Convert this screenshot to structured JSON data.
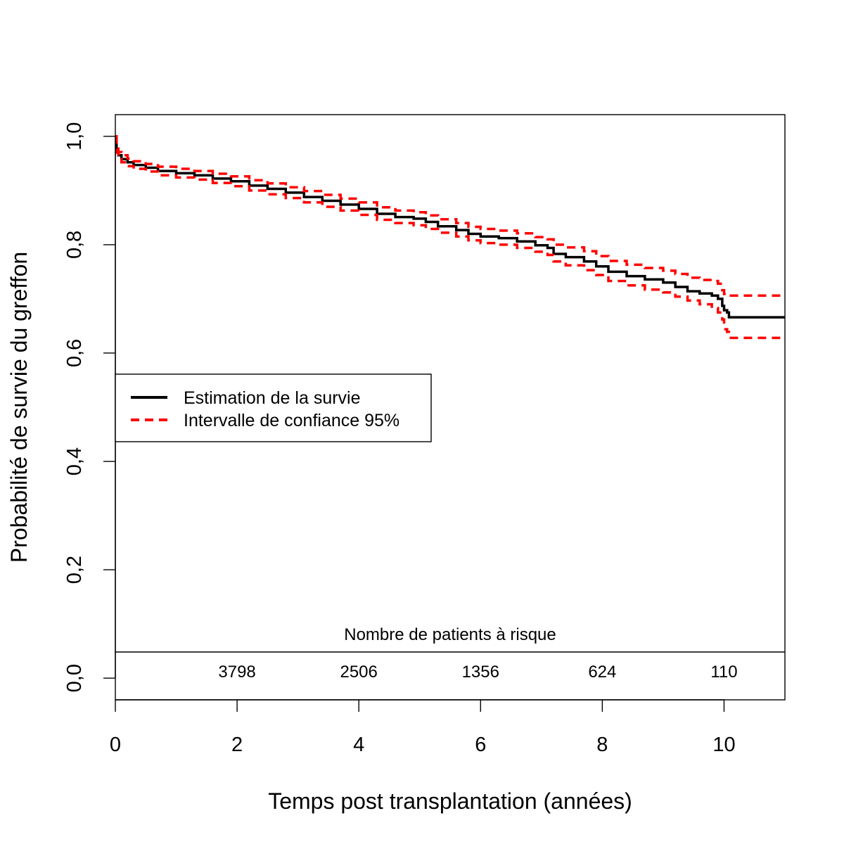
{
  "chart_data": {
    "type": "line",
    "xlabel": "Temps post transplantation (années)",
    "ylabel": "Probabilité de survie du greffon",
    "xlim": [
      0,
      11
    ],
    "ylim": [
      -0.04,
      1.04
    ],
    "x_ticks": [
      0,
      2,
      4,
      6,
      8,
      10
    ],
    "x_tick_labels": [
      "0",
      "2",
      "4",
      "6",
      "8",
      "10"
    ],
    "y_ticks": [
      0,
      0.2,
      0.4,
      0.6,
      0.8,
      1.0
    ],
    "y_tick_labels": [
      "0,0",
      "0,2",
      "0,4",
      "0,6",
      "0,8",
      "1,0"
    ],
    "grid": false,
    "legend_position": "middle-left",
    "series": [
      {
        "name": "Estimation de la survie",
        "color": "#000000",
        "style": "solid",
        "x": [
          0,
          0.02,
          0.05,
          0.1,
          0.2,
          0.3,
          0.5,
          0.7,
          1.0,
          1.3,
          1.6,
          1.9,
          2.2,
          2.5,
          2.8,
          3.1,
          3.4,
          3.7,
          4.0,
          4.3,
          4.6,
          4.9,
          5.1,
          5.3,
          5.6,
          5.8,
          6.0,
          6.3,
          6.6,
          6.9,
          7.1,
          7.2,
          7.4,
          7.7,
          7.9,
          8.1,
          8.4,
          8.7,
          9.0,
          9.2,
          9.4,
          9.6,
          9.8,
          9.9,
          9.97,
          10.0,
          10.05,
          10.08,
          10.2,
          10.6,
          11.0
        ],
        "y": [
          1.0,
          0.975,
          0.965,
          0.958,
          0.952,
          0.947,
          0.942,
          0.936,
          0.932,
          0.928,
          0.922,
          0.917,
          0.909,
          0.903,
          0.896,
          0.888,
          0.881,
          0.874,
          0.866,
          0.857,
          0.851,
          0.848,
          0.842,
          0.834,
          0.827,
          0.82,
          0.815,
          0.812,
          0.806,
          0.799,
          0.794,
          0.783,
          0.777,
          0.769,
          0.76,
          0.75,
          0.742,
          0.736,
          0.73,
          0.722,
          0.714,
          0.71,
          0.706,
          0.7,
          0.687,
          0.679,
          0.675,
          0.666,
          0.666,
          0.666,
          0.666
        ]
      },
      {
        "name": "Intervalle de confiance 95%",
        "color": "#ff0000",
        "style": "dashed",
        "x": [
          0,
          0.02,
          0.05,
          0.1,
          0.2,
          0.3,
          0.5,
          0.7,
          1.0,
          1.3,
          1.6,
          1.9,
          2.2,
          2.5,
          2.8,
          3.1,
          3.4,
          3.7,
          4.0,
          4.3,
          4.6,
          4.9,
          5.1,
          5.3,
          5.6,
          5.8,
          6.0,
          6.3,
          6.6,
          6.9,
          7.1,
          7.2,
          7.4,
          7.7,
          7.9,
          8.1,
          8.4,
          8.7,
          9.0,
          9.2,
          9.4,
          9.6,
          9.8,
          9.9,
          9.97,
          10.0,
          10.05,
          10.08,
          10.2,
          10.6,
          11.0
        ],
        "y": [
          1.0,
          0.98,
          0.971,
          0.965,
          0.959,
          0.954,
          0.949,
          0.944,
          0.94,
          0.936,
          0.931,
          0.926,
          0.919,
          0.913,
          0.906,
          0.899,
          0.892,
          0.885,
          0.878,
          0.869,
          0.863,
          0.86,
          0.854,
          0.847,
          0.84,
          0.833,
          0.829,
          0.826,
          0.821,
          0.814,
          0.81,
          0.8,
          0.795,
          0.788,
          0.779,
          0.77,
          0.763,
          0.757,
          0.752,
          0.746,
          0.739,
          0.735,
          0.733,
          0.728,
          0.716,
          0.709,
          0.706,
          0.706,
          0.706,
          0.706,
          0.706
        ]
      },
      {
        "name": "Intervalle de confiance 95%",
        "color": "#ff0000",
        "style": "dashed",
        "x": [
          0,
          0.02,
          0.05,
          0.1,
          0.2,
          0.3,
          0.5,
          0.7,
          1.0,
          1.3,
          1.6,
          1.9,
          2.2,
          2.5,
          2.8,
          3.1,
          3.4,
          3.7,
          4.0,
          4.3,
          4.6,
          4.9,
          5.1,
          5.3,
          5.6,
          5.8,
          6.0,
          6.3,
          6.6,
          6.9,
          7.1,
          7.2,
          7.4,
          7.7,
          7.9,
          8.1,
          8.4,
          8.7,
          9.0,
          9.2,
          9.4,
          9.6,
          9.8,
          9.9,
          9.97,
          10.0,
          10.05,
          10.08,
          10.2,
          10.6,
          11.0
        ],
        "y": [
          1.0,
          0.97,
          0.958,
          0.952,
          0.945,
          0.94,
          0.935,
          0.928,
          0.924,
          0.92,
          0.914,
          0.908,
          0.9,
          0.893,
          0.886,
          0.878,
          0.87,
          0.863,
          0.855,
          0.846,
          0.84,
          0.836,
          0.829,
          0.822,
          0.815,
          0.808,
          0.803,
          0.8,
          0.794,
          0.787,
          0.781,
          0.769,
          0.762,
          0.753,
          0.744,
          0.733,
          0.725,
          0.717,
          0.712,
          0.704,
          0.697,
          0.69,
          0.683,
          0.675,
          0.662,
          0.644,
          0.639,
          0.628,
          0.628,
          0.628,
          0.628
        ]
      }
    ],
    "legend": [
      {
        "label": "Estimation de la survie",
        "color": "#000000",
        "style": "solid"
      },
      {
        "label": "Intervalle de confiance 95%",
        "color": "#ff0000",
        "style": "dashed"
      }
    ],
    "risk_table": {
      "title": "Nombre de patients à risque",
      "x": [
        2,
        4,
        6,
        8,
        10
      ],
      "counts": [
        "3798",
        "2506",
        "1356",
        "624",
        "110"
      ]
    }
  }
}
